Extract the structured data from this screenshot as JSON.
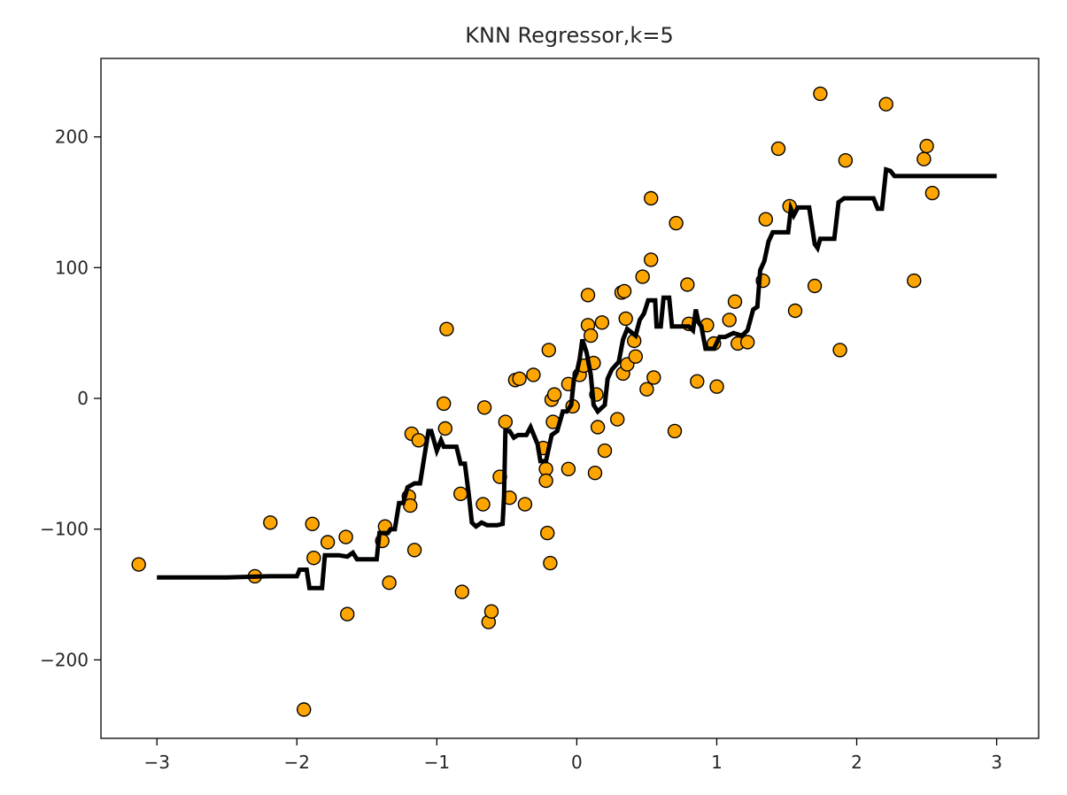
{
  "chart_data": {
    "type": "scatter",
    "title": "KNN Regressor,k=5",
    "xlabel": "",
    "ylabel": "",
    "xlim": [
      -3.4,
      3.3
    ],
    "ylim": [
      -260,
      260
    ],
    "x_ticks": [
      -3,
      -2,
      -1,
      0,
      1,
      2,
      3
    ],
    "x_tick_labels": [
      "−3",
      "−2",
      "−1",
      "0",
      "1",
      "2",
      "3"
    ],
    "y_ticks": [
      -200,
      -100,
      0,
      100,
      200
    ],
    "y_tick_labels": [
      "−200",
      "−100",
      "0",
      "100",
      "200"
    ],
    "grid": false,
    "colors": {
      "points": "#ffa500",
      "point_edge": "#000000",
      "line": "#000000"
    },
    "series": [
      {
        "kind": "scatter",
        "points": [
          [
            -3.13,
            -127
          ],
          [
            -2.3,
            -136
          ],
          [
            -2.19,
            -95
          ],
          [
            -1.95,
            -238
          ],
          [
            -1.89,
            -96
          ],
          [
            -1.88,
            -122
          ],
          [
            -1.78,
            -110
          ],
          [
            -1.65,
            -106
          ],
          [
            -1.64,
            -165
          ],
          [
            -1.39,
            -109
          ],
          [
            -1.37,
            -98
          ],
          [
            -1.34,
            -141
          ],
          [
            -1.2,
            -75
          ],
          [
            -1.19,
            -82
          ],
          [
            -1.18,
            -27
          ],
          [
            -1.16,
            -116
          ],
          [
            -1.13,
            -32
          ],
          [
            -0.95,
            -4
          ],
          [
            -0.94,
            -23
          ],
          [
            -0.93,
            53
          ],
          [
            -0.83,
            -73
          ],
          [
            -0.82,
            -148
          ],
          [
            -0.67,
            -81
          ],
          [
            -0.66,
            -7
          ],
          [
            -0.63,
            -171
          ],
          [
            -0.61,
            -163
          ],
          [
            -0.55,
            -60
          ],
          [
            -0.51,
            -18
          ],
          [
            -0.48,
            -76
          ],
          [
            -0.44,
            14
          ],
          [
            -0.41,
            15
          ],
          [
            -0.37,
            -81
          ],
          [
            -0.31,
            18
          ],
          [
            -0.24,
            -38
          ],
          [
            -0.22,
            -54
          ],
          [
            -0.22,
            -63
          ],
          [
            -0.21,
            -103
          ],
          [
            -0.2,
            37
          ],
          [
            -0.19,
            -126
          ],
          [
            -0.18,
            -1
          ],
          [
            -0.16,
            3
          ],
          [
            -0.17,
            -18
          ],
          [
            -0.06,
            -54
          ],
          [
            -0.06,
            11
          ],
          [
            -0.03,
            -6
          ],
          [
            0.02,
            18
          ],
          [
            0.05,
            25
          ],
          [
            0.08,
            79
          ],
          [
            0.08,
            56
          ],
          [
            0.1,
            48
          ],
          [
            0.12,
            27
          ],
          [
            0.13,
            -57
          ],
          [
            0.14,
            3
          ],
          [
            0.15,
            -22
          ],
          [
            0.18,
            58
          ],
          [
            0.2,
            -40
          ],
          [
            0.29,
            -16
          ],
          [
            0.32,
            81
          ],
          [
            0.33,
            19
          ],
          [
            0.34,
            82
          ],
          [
            0.35,
            61
          ],
          [
            0.36,
            26
          ],
          [
            0.41,
            44
          ],
          [
            0.42,
            32
          ],
          [
            0.47,
            93
          ],
          [
            0.5,
            7
          ],
          [
            0.53,
            153
          ],
          [
            0.53,
            106
          ],
          [
            0.55,
            16
          ],
          [
            0.7,
            -25
          ],
          [
            0.71,
            134
          ],
          [
            0.79,
            87
          ],
          [
            0.8,
            57
          ],
          [
            0.86,
            13
          ],
          [
            0.93,
            56
          ],
          [
            0.98,
            42
          ],
          [
            1.0,
            9
          ],
          [
            1.09,
            60
          ],
          [
            1.13,
            74
          ],
          [
            1.15,
            42
          ],
          [
            1.22,
            43
          ],
          [
            1.33,
            90
          ],
          [
            1.35,
            137
          ],
          [
            1.44,
            191
          ],
          [
            1.52,
            147
          ],
          [
            1.56,
            67
          ],
          [
            1.7,
            86
          ],
          [
            1.74,
            233
          ],
          [
            1.88,
            37
          ],
          [
            1.92,
            182
          ],
          [
            2.21,
            225
          ],
          [
            2.41,
            90
          ],
          [
            2.48,
            183
          ],
          [
            2.5,
            193
          ],
          [
            2.54,
            157
          ]
        ]
      },
      {
        "kind": "line",
        "points": [
          [
            -3.0,
            -137
          ],
          [
            -2.5,
            -137
          ],
          [
            -2.2,
            -136
          ],
          [
            -2.0,
            -136
          ],
          [
            -1.98,
            -131
          ],
          [
            -1.93,
            -131
          ],
          [
            -1.91,
            -145
          ],
          [
            -1.82,
            -145
          ],
          [
            -1.8,
            -120
          ],
          [
            -1.7,
            -120
          ],
          [
            -1.64,
            -121
          ],
          [
            -1.6,
            -118
          ],
          [
            -1.57,
            -123
          ],
          [
            -1.43,
            -123
          ],
          [
            -1.41,
            -103
          ],
          [
            -1.35,
            -103
          ],
          [
            -1.33,
            -100
          ],
          [
            -1.3,
            -100
          ],
          [
            -1.27,
            -80
          ],
          [
            -1.24,
            -80
          ],
          [
            -1.21,
            -68
          ],
          [
            -1.16,
            -65
          ],
          [
            -1.12,
            -65
          ],
          [
            -1.09,
            -45
          ],
          [
            -1.06,
            -25
          ],
          [
            -1.04,
            -25
          ],
          [
            -1.0,
            -40
          ],
          [
            -0.97,
            -32
          ],
          [
            -0.95,
            -37
          ],
          [
            -0.86,
            -37
          ],
          [
            -0.83,
            -50
          ],
          [
            -0.8,
            -50
          ],
          [
            -0.77,
            -75
          ],
          [
            -0.75,
            -95
          ],
          [
            -0.72,
            -98
          ],
          [
            -0.68,
            -95
          ],
          [
            -0.64,
            -97
          ],
          [
            -0.57,
            -97
          ],
          [
            -0.53,
            -96
          ],
          [
            -0.52,
            -75
          ],
          [
            -0.51,
            -25
          ],
          [
            -0.48,
            -25
          ],
          [
            -0.45,
            -30
          ],
          [
            -0.42,
            -28
          ],
          [
            -0.36,
            -28
          ],
          [
            -0.33,
            -22
          ],
          [
            -0.28,
            -35
          ],
          [
            -0.26,
            -48
          ],
          [
            -0.22,
            -48
          ],
          [
            -0.18,
            -28
          ],
          [
            -0.14,
            -25
          ],
          [
            -0.1,
            -10
          ],
          [
            -0.07,
            -10
          ],
          [
            -0.04,
            -5
          ],
          [
            -0.02,
            15
          ],
          [
            0.0,
            20
          ],
          [
            0.02,
            30
          ],
          [
            0.04,
            45
          ],
          [
            0.07,
            35
          ],
          [
            0.1,
            18
          ],
          [
            0.12,
            -5
          ],
          [
            0.15,
            -10
          ],
          [
            0.2,
            -5
          ],
          [
            0.22,
            15
          ],
          [
            0.25,
            22
          ],
          [
            0.3,
            28
          ],
          [
            0.33,
            45
          ],
          [
            0.36,
            53
          ],
          [
            0.42,
            48
          ],
          [
            0.45,
            60
          ],
          [
            0.48,
            65
          ],
          [
            0.51,
            75
          ],
          [
            0.56,
            75
          ],
          [
            0.57,
            55
          ],
          [
            0.6,
            55
          ],
          [
            0.62,
            77
          ],
          [
            0.66,
            77
          ],
          [
            0.68,
            55
          ],
          [
            0.8,
            55
          ],
          [
            0.83,
            52
          ],
          [
            0.85,
            68
          ],
          [
            0.87,
            58
          ],
          [
            0.89,
            55
          ],
          [
            0.92,
            38
          ],
          [
            0.98,
            38
          ],
          [
            1.02,
            47
          ],
          [
            1.06,
            47
          ],
          [
            1.12,
            50
          ],
          [
            1.18,
            48
          ],
          [
            1.22,
            52
          ],
          [
            1.26,
            68
          ],
          [
            1.29,
            70
          ],
          [
            1.31,
            98
          ],
          [
            1.34,
            105
          ],
          [
            1.37,
            120
          ],
          [
            1.4,
            127
          ],
          [
            1.51,
            127
          ],
          [
            1.53,
            145
          ],
          [
            1.55,
            140
          ],
          [
            1.58,
            146
          ],
          [
            1.66,
            146
          ],
          [
            1.7,
            118
          ],
          [
            1.72,
            115
          ],
          [
            1.74,
            122
          ],
          [
            1.84,
            122
          ],
          [
            1.87,
            150
          ],
          [
            1.91,
            153
          ],
          [
            2.12,
            153
          ],
          [
            2.15,
            145
          ],
          [
            2.18,
            145
          ],
          [
            2.21,
            175
          ],
          [
            2.24,
            174
          ],
          [
            2.27,
            170
          ],
          [
            2.5,
            170
          ],
          [
            3.0,
            170
          ]
        ]
      }
    ]
  }
}
